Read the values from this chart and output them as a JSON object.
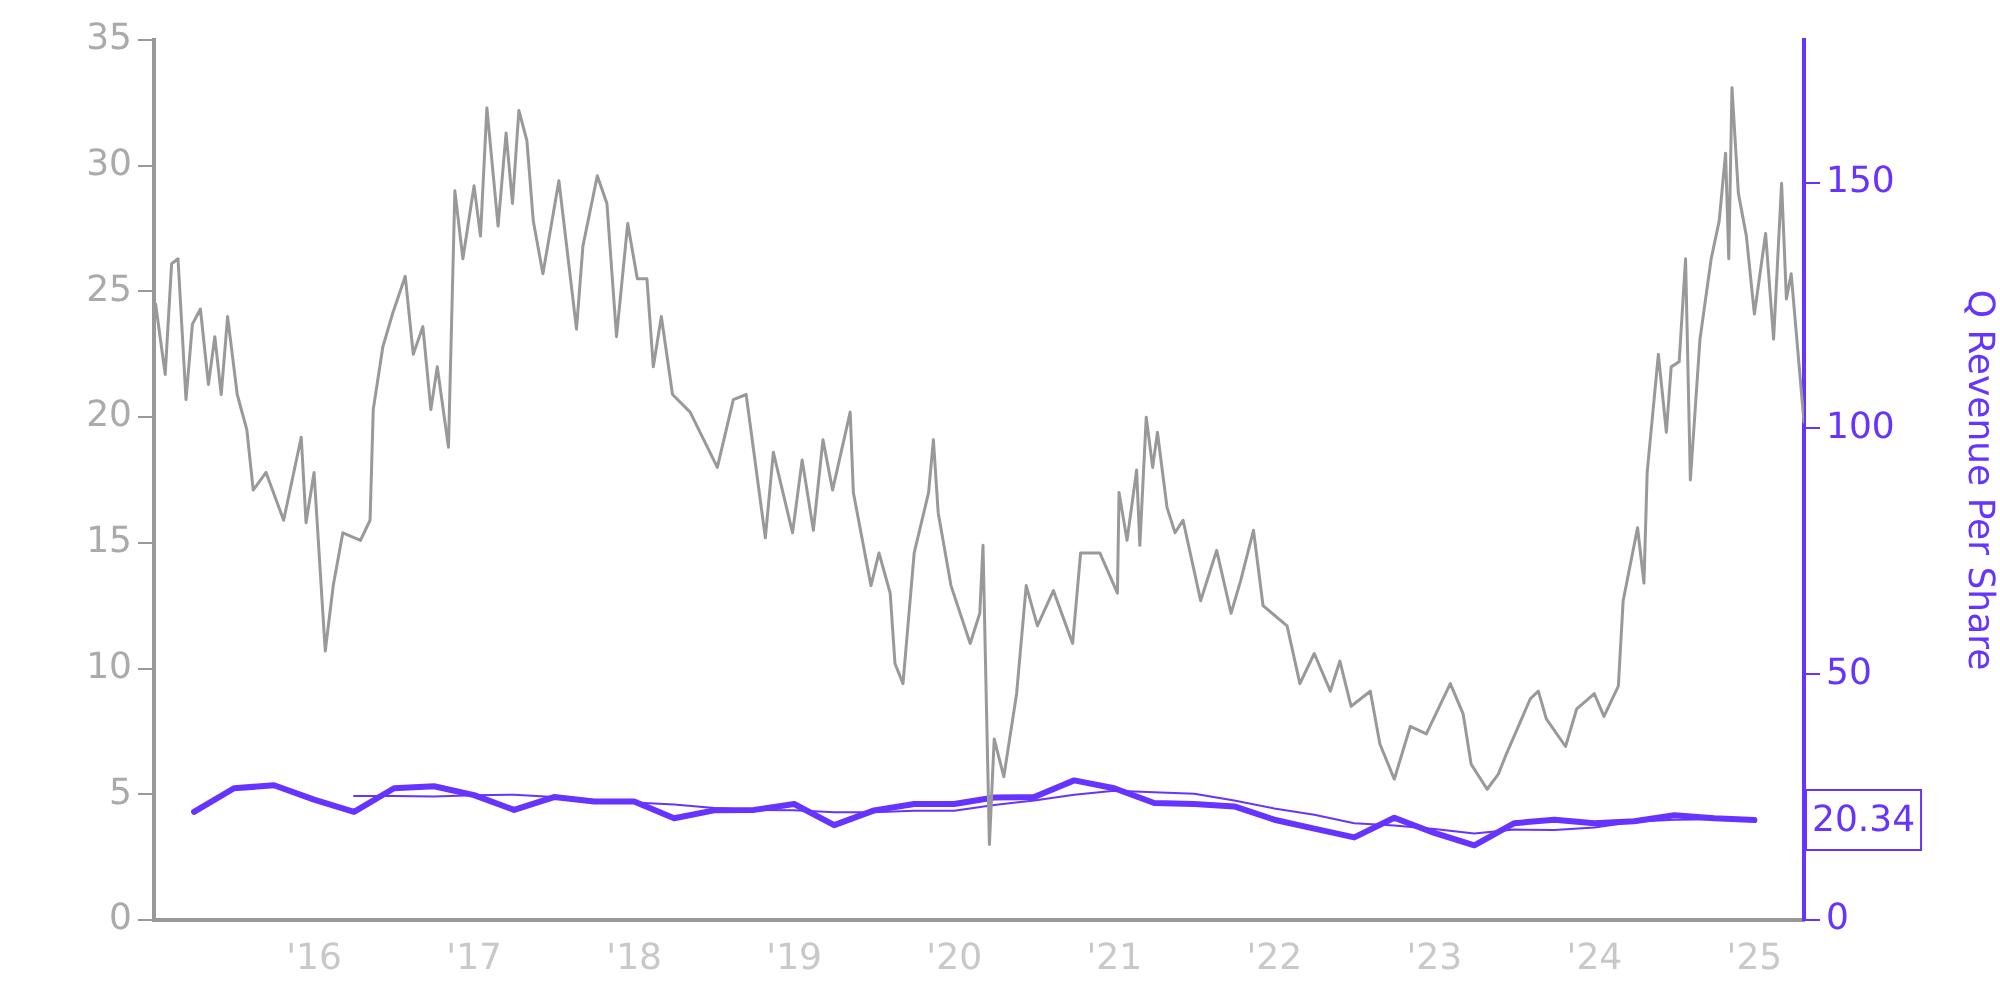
{
  "chart_data": {
    "type": "line",
    "y2label": "Q Revenue Per Share",
    "xlim": [
      2015,
      2025.31
    ],
    "xticks": [
      {
        "value": 2016,
        "label": "'16"
      },
      {
        "value": 2017,
        "label": "'17"
      },
      {
        "value": 2018,
        "label": "'18"
      },
      {
        "value": 2019,
        "label": "'19"
      },
      {
        "value": 2020,
        "label": "'20"
      },
      {
        "value": 2021,
        "label": "'21"
      },
      {
        "value": 2022,
        "label": "'22"
      },
      {
        "value": 2023,
        "label": "'23"
      },
      {
        "value": 2024,
        "label": "'24"
      },
      {
        "value": 2025,
        "label": "'25"
      }
    ],
    "ylim": [
      0,
      35
    ],
    "yticks": [
      0,
      5,
      10,
      15,
      20,
      25,
      30,
      35
    ],
    "y2lim": [
      0,
      179
    ],
    "y2ticks": [
      0,
      50,
      100,
      150
    ],
    "grid": false,
    "legend": false,
    "marker": "none",
    "line_style": "solid",
    "series": [
      {
        "type": "line",
        "color": "#999999",
        "x": [
          2015.01,
          2015.07,
          2015.11,
          2015.15,
          2015.2,
          2015.24,
          2015.29,
          2015.34,
          2015.38,
          2015.42,
          2015.46,
          2015.52,
          2015.58,
          2015.62,
          2015.7,
          2015.81,
          2015.92,
          2015.95,
          2016.0,
          2016.07,
          2016.12,
          2016.18,
          2016.29,
          2016.35,
          2016.37,
          2016.43,
          2016.49,
          2016.57,
          2016.62,
          2016.68,
          2016.73,
          2016.77,
          2016.84,
          2016.88,
          2016.93,
          2017.0,
          2017.04,
          2017.08,
          2017.15,
          2017.2,
          2017.24,
          2017.28,
          2017.33,
          2017.37,
          2017.43,
          2017.53,
          2017.64,
          2017.68,
          2017.77,
          2017.83,
          2017.89,
          2017.96,
          2018.02,
          2018.08,
          2018.12,
          2018.17,
          2018.24,
          2018.35,
          2018.52,
          2018.62,
          2018.7,
          2018.82,
          2018.87,
          2018.99,
          2019.05,
          2019.12,
          2019.18,
          2019.24,
          2019.35,
          2019.37,
          2019.48,
          2019.53,
          2019.6,
          2019.63,
          2019.68,
          2019.75,
          2019.84,
          2019.87,
          2019.9,
          2019.98,
          2020.1,
          2020.16,
          2020.18,
          2020.22,
          2020.25,
          2020.31,
          2020.39,
          2020.45,
          2020.52,
          2020.62,
          2020.74,
          2020.79,
          2020.91,
          2021.02,
          2021.03,
          2021.08,
          2021.14,
          2021.16,
          2021.2,
          2021.24,
          2021.27,
          2021.33,
          2021.38,
          2021.43,
          2021.54,
          2021.64,
          2021.73,
          2021.79,
          2021.87,
          2021.93,
          2022.08,
          2022.16,
          2022.25,
          2022.35,
          2022.41,
          2022.48,
          2022.6,
          2022.66,
          2022.75,
          2022.85,
          2022.95,
          2023.1,
          2023.18,
          2023.23,
          2023.33,
          2023.4,
          2023.45,
          2023.6,
          2023.65,
          2023.7,
          2023.82,
          2023.89,
          2024.0,
          2024.06,
          2024.15,
          2024.18,
          2024.27,
          2024.31,
          2024.33,
          2024.4,
          2024.45,
          2024.48,
          2024.53,
          2024.57,
          2024.6,
          2024.66,
          2024.73,
          2024.78,
          2024.82,
          2024.84,
          2024.86,
          2024.9,
          2024.95,
          2025.0,
          2025.07,
          2025.12,
          2025.17,
          2025.2,
          2025.23,
          2025.28,
          2025.31
        ],
        "values": [
          24.5,
          21.7,
          26.1,
          26.3,
          20.7,
          23.7,
          24.3,
          21.3,
          23.2,
          20.9,
          24.0,
          20.9,
          19.5,
          17.1,
          17.8,
          15.9,
          19.2,
          15.8,
          17.8,
          10.7,
          13.3,
          15.4,
          15.1,
          15.9,
          20.3,
          22.8,
          24.1,
          25.6,
          22.5,
          23.6,
          20.3,
          22.0,
          18.8,
          29.0,
          26.3,
          29.2,
          27.2,
          32.3,
          27.6,
          31.3,
          28.5,
          32.2,
          31.0,
          27.8,
          25.7,
          29.4,
          23.5,
          26.8,
          29.6,
          28.5,
          23.2,
          27.7,
          25.5,
          25.5,
          22.0,
          24.0,
          20.9,
          20.2,
          18.0,
          20.7,
          20.9,
          15.2,
          18.6,
          15.4,
          18.3,
          15.5,
          19.1,
          17.1,
          20.2,
          17.0,
          13.3,
          14.6,
          13.0,
          10.2,
          9.4,
          14.6,
          17.0,
          19.1,
          16.2,
          13.3,
          11.0,
          12.2,
          14.9,
          3.0,
          7.2,
          5.7,
          9.0,
          13.3,
          11.7,
          13.1,
          11.0,
          14.6,
          14.6,
          13.0,
          17.0,
          15.1,
          17.9,
          14.9,
          20.0,
          18.0,
          19.4,
          16.4,
          15.4,
          15.9,
          12.7,
          14.7,
          12.2,
          13.5,
          15.5,
          12.5,
          11.7,
          9.4,
          10.6,
          9.1,
          10.3,
          8.5,
          9.1,
          7.0,
          5.6,
          7.7,
          7.4,
          9.4,
          8.2,
          6.2,
          5.2,
          5.8,
          6.6,
          8.8,
          9.1,
          8.0,
          6.9,
          8.4,
          9.0,
          8.1,
          9.3,
          12.7,
          15.6,
          13.4,
          17.8,
          22.5,
          19.4,
          22.0,
          22.2,
          26.3,
          17.5,
          23.1,
          26.3,
          27.8,
          30.5,
          26.3,
          33.1,
          28.9,
          27.2,
          24.1,
          27.3,
          23.1,
          29.3,
          24.7,
          25.7,
          22.0,
          19.8
        ]
      },
      {
        "type": "line",
        "color": "#6633ff",
        "axis": "y2",
        "x": [
          2015.25,
          2015.5,
          2015.75,
          2016,
          2016.25,
          2016.5,
          2016.75,
          2017,
          2017.25,
          2017.5,
          2017.75,
          2018,
          2018.25,
          2018.5,
          2018.75,
          2019,
          2019.25,
          2019.5,
          2019.75,
          2020,
          2020.25,
          2020.5,
          2020.75,
          2021,
          2021.25,
          2021.5,
          2021.75,
          2022,
          2022.25,
          2022.5,
          2022.75,
          2023,
          2023.25,
          2023.5,
          2023.75,
          2024,
          2024.25,
          2024.5,
          2024.75,
          2025
        ],
        "values": [
          22.0,
          26.8,
          27.4,
          24.5,
          22.0,
          26.8,
          27.2,
          25.4,
          22.4,
          25.0,
          24.1,
          24.1,
          20.7,
          22.3,
          22.4,
          23.6,
          19.3,
          22.3,
          23.6,
          23.6,
          24.9,
          25.0,
          28.4,
          26.8,
          23.8,
          23.6,
          23.1,
          20.4,
          18.6,
          16.8,
          20.8,
          17.7,
          15.2,
          19.7,
          20.4,
          19.7,
          20.1,
          21.3,
          20.7,
          20.34
        ],
        "value_labels": [
          null,
          null,
          null,
          null,
          null,
          null,
          null,
          null,
          null,
          null,
          null,
          null,
          null,
          null,
          null,
          null,
          null,
          null,
          null,
          null,
          null,
          null,
          null,
          null,
          null,
          null,
          null,
          null,
          null,
          null,
          null,
          null,
          null,
          null,
          null,
          null,
          null,
          null,
          null,
          "20.34"
        ]
      },
      {
        "type": "line",
        "color": "#6633ff",
        "axis": "y2",
        "x": [
          2016.25,
          2016.5,
          2016.75,
          2017,
          2017.25,
          2017.5,
          2017.75,
          2018,
          2018.25,
          2018.5,
          2018.75,
          2019,
          2019.25,
          2019.5,
          2019.75,
          2020,
          2020.25,
          2020.5,
          2020.75,
          2021,
          2021.25,
          2021.5,
          2021.75,
          2022,
          2022.25,
          2022.5,
          2022.75,
          2023,
          2023.25,
          2023.5,
          2023.75,
          2024,
          2024.25,
          2024.5,
          2024.75,
          2025
        ],
        "values": [
          25.2,
          25.2,
          25.1,
          25.4,
          25.5,
          25.0,
          24.2,
          23.9,
          23.5,
          22.8,
          22.4,
          22.3,
          21.9,
          21.9,
          22.2,
          22.2,
          23.4,
          24.3,
          25.5,
          26.3,
          26.0,
          25.7,
          24.3,
          22.7,
          21.4,
          19.7,
          19.2,
          18.5,
          17.6,
          18.4,
          18.3,
          18.8,
          20.0,
          20.4,
          20.5,
          20.6
        ]
      }
    ]
  }
}
